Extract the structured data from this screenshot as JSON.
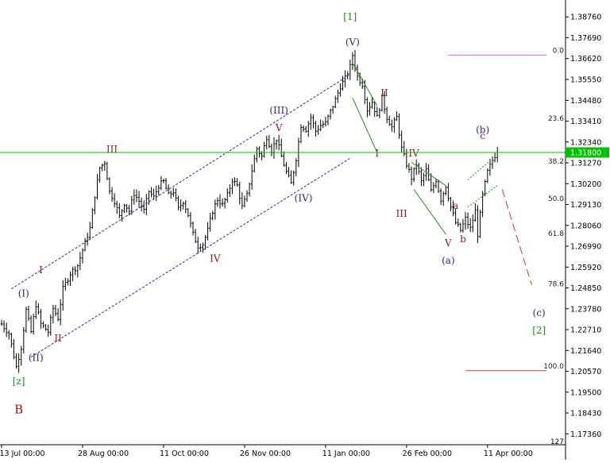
{
  "chart_data": {
    "type": "ohlc",
    "title": "",
    "xlabel": "",
    "ylabel": "",
    "ylim": [
      1.168,
      1.393
    ],
    "grid": false,
    "x_ticks": [
      {
        "label": "13 Jul 00:00",
        "bar": 0
      },
      {
        "label": "28 Aug 00:00",
        "bar": 33
      },
      {
        "label": "11 Oct 00:00",
        "bar": 66
      },
      {
        "label": "26 Nov 00:00",
        "bar": 99
      },
      {
        "label": "11 Jan 00:00",
        "bar": 132
      },
      {
        "label": "26 Feb 00:00",
        "bar": 165
      },
      {
        "label": "11 Apr 00:00",
        "bar": 198
      }
    ],
    "y_ticks": [
      "1.38760",
      "1.37690",
      "1.36620",
      "1.35550",
      "1.34480",
      "1.33410",
      "1.32340",
      "1.31270",
      "1.30200",
      "1.29130",
      "1.28060",
      "1.26990",
      "1.25920",
      "1.24850",
      "1.23780",
      "1.22710",
      "1.21640",
      "1.20570",
      "1.19500",
      "1.18430",
      "1.17360"
    ],
    "y_axis_bottom_label": "127",
    "last_bar": 202,
    "price_path": [
      [
        0,
        1.23
      ],
      [
        3,
        1.225
      ],
      [
        6,
        1.208
      ],
      [
        8,
        1.218
      ],
      [
        10,
        1.237
      ],
      [
        12,
        1.226
      ],
      [
        14,
        1.24
      ],
      [
        16,
        1.23
      ],
      [
        19,
        1.226
      ],
      [
        21,
        1.238
      ],
      [
        23,
        1.233
      ],
      [
        25,
        1.248
      ],
      [
        28,
        1.256
      ],
      [
        31,
        1.26
      ],
      [
        33,
        1.268
      ],
      [
        36,
        1.279
      ],
      [
        38,
        1.296
      ],
      [
        40,
        1.31
      ],
      [
        42,
        1.313
      ],
      [
        44,
        1.298
      ],
      [
        46,
        1.293
      ],
      [
        48,
        1.285
      ],
      [
        50,
        1.292
      ],
      [
        52,
        1.288
      ],
      [
        54,
        1.297
      ],
      [
        56,
        1.293
      ],
      [
        58,
        1.288
      ],
      [
        60,
        1.298
      ],
      [
        62,
        1.295
      ],
      [
        64,
        1.301
      ],
      [
        66,
        1.303
      ],
      [
        68,
        1.296
      ],
      [
        70,
        1.298
      ],
      [
        72,
        1.289
      ],
      [
        74,
        1.293
      ],
      [
        76,
        1.286
      ],
      [
        78,
        1.276
      ],
      [
        80,
        1.27
      ],
      [
        82,
        1.271
      ],
      [
        84,
        1.278
      ],
      [
        86,
        1.288
      ],
      [
        88,
        1.294
      ],
      [
        90,
        1.291
      ],
      [
        92,
        1.296
      ],
      [
        94,
        1.304
      ],
      [
        96,
        1.301
      ],
      [
        98,
        1.29
      ],
      [
        100,
        1.296
      ],
      [
        102,
        1.309
      ],
      [
        104,
        1.32
      ],
      [
        106,
        1.316
      ],
      [
        108,
        1.326
      ],
      [
        110,
        1.319
      ],
      [
        112,
        1.325
      ],
      [
        114,
        1.316
      ],
      [
        116,
        1.308
      ],
      [
        118,
        1.302
      ],
      [
        120,
        1.315
      ],
      [
        122,
        1.332
      ],
      [
        124,
        1.33
      ],
      [
        126,
        1.336
      ],
      [
        128,
        1.329
      ],
      [
        130,
        1.332
      ],
      [
        132,
        1.333
      ],
      [
        134,
        1.339
      ],
      [
        136,
        1.345
      ],
      [
        138,
        1.352
      ],
      [
        140,
        1.356
      ],
      [
        142,
        1.362
      ],
      [
        143,
        1.368
      ],
      [
        145,
        1.357
      ],
      [
        147,
        1.353
      ],
      [
        149,
        1.34
      ],
      [
        151,
        1.344
      ],
      [
        153,
        1.336
      ],
      [
        155,
        1.346
      ],
      [
        157,
        1.336
      ],
      [
        159,
        1.331
      ],
      [
        161,
        1.336
      ],
      [
        163,
        1.32
      ],
      [
        165,
        1.312
      ],
      [
        167,
        1.305
      ],
      [
        169,
        1.312
      ],
      [
        171,
        1.303
      ],
      [
        173,
        1.309
      ],
      [
        175,
        1.298
      ],
      [
        177,
        1.304
      ],
      [
        179,
        1.294
      ],
      [
        181,
        1.301
      ],
      [
        183,
        1.29
      ],
      [
        185,
        1.282
      ],
      [
        187,
        1.278
      ],
      [
        189,
        1.284
      ],
      [
        191,
        1.279
      ],
      [
        193,
        1.288
      ],
      [
        194,
        1.276
      ],
      [
        196,
        1.296
      ],
      [
        198,
        1.308
      ],
      [
        200,
        1.314
      ],
      [
        202,
        1.319
      ]
    ],
    "current_price": {
      "label": "1.31800",
      "value": 1.318,
      "color": "#00c000"
    },
    "wave_labels": [
      {
        "text": "[1]",
        "bar": 142,
        "price": 1.386,
        "color": "#1a8c1a"
      },
      {
        "text": "(V)",
        "bar": 143,
        "price": 1.373,
        "color": "#2a2a8a"
      },
      {
        "text": "(III)",
        "bar": 113,
        "price": 1.338,
        "color": "#2a2a8a"
      },
      {
        "text": "V",
        "bar": 113,
        "price": 1.329,
        "color": "#8b1a1a"
      },
      {
        "text": "III",
        "bar": 45,
        "price": 1.318,
        "color": "#8b1a1a"
      },
      {
        "text": "(IV)",
        "bar": 123,
        "price": 1.293,
        "color": "#2a2a8a"
      },
      {
        "text": "IV",
        "bar": 87,
        "price": 1.262,
        "color": "#8b1a1a"
      },
      {
        "text": "(I)",
        "bar": 9,
        "price": 1.244,
        "color": "#2a2a8a"
      },
      {
        "text": "I",
        "bar": 16,
        "price": 1.256,
        "color": "#8b1a1a"
      },
      {
        "text": "II",
        "bar": 23,
        "price": 1.221,
        "color": "#8b1a1a"
      },
      {
        "text": "(II)",
        "bar": 14,
        "price": 1.211,
        "color": "#2a2a8a"
      },
      {
        "text": "[z]",
        "bar": 7,
        "price": 1.199,
        "color": "#1a8c1a"
      },
      {
        "text": "B",
        "bar": 7,
        "price": 1.184,
        "color": "#8b1a1a",
        "size": 15
      },
      {
        "text": "II",
        "bar": 156,
        "price": 1.347,
        "color": "#8b1a1a"
      },
      {
        "text": "I",
        "bar": 153,
        "price": 1.316,
        "color": "#8b1a1a"
      },
      {
        "text": "III",
        "bar": 163,
        "price": 1.285,
        "color": "#8b1a1a"
      },
      {
        "text": "IV",
        "bar": 168,
        "price": 1.316,
        "color": "#8b1a1a"
      },
      {
        "text": "V",
        "bar": 182,
        "price": 1.27,
        "color": "#8b1a1a"
      },
      {
        "text": "(a)",
        "bar": 182,
        "price": 1.261,
        "color": "#2a2a8a"
      },
      {
        "text": "a",
        "bar": 185,
        "price": 1.289,
        "color": "#8b1a1a"
      },
      {
        "text": "b",
        "bar": 188,
        "price": 1.272,
        "color": "#8b1a1a"
      },
      {
        "text": "c",
        "bar": 196,
        "price": 1.325,
        "color": "#8b1a1a"
      },
      {
        "text": "(b)",
        "bar": 196,
        "price": 1.328,
        "color": "#2a2a8a"
      },
      {
        "text": "(c)",
        "bar": 219,
        "price": 1.234,
        "color": "#2a2a8a"
      },
      {
        "text": "[2]",
        "bar": 219,
        "price": 1.225,
        "color": "#1a8c1a"
      }
    ],
    "fibo_levels": [
      {
        "label": "0.0",
        "value": 1.368
      },
      {
        "label": "23.6",
        "value": 1.333
      },
      {
        "label": "38.2",
        "value": 1.311
      },
      {
        "label": "50.0",
        "value": 1.292
      },
      {
        "label": "61.8",
        "value": 1.274
      },
      {
        "label": "78.6",
        "value": 1.248
      },
      {
        "label": "100.0",
        "value": 1.206
      }
    ],
    "fibo_lines": [
      {
        "bar_start": 182,
        "bar_end": 222,
        "value": 1.368,
        "color": "#e060e0"
      },
      {
        "bar_start": 189,
        "bar_end": 222,
        "value": 1.206,
        "color": "#c04040"
      }
    ],
    "trend_lines": [
      {
        "from": [
          4,
          1.248
        ],
        "to": [
          142,
          1.358
        ],
        "color": "#2a2aa0",
        "dash": "3,2"
      },
      {
        "from": [
          12,
          1.213
        ],
        "to": [
          142,
          1.315
        ],
        "color": "#2a2aa0",
        "dash": "3,2"
      },
      {
        "from": [
          143,
          1.364
        ],
        "to": [
          153,
          1.342
        ],
        "color": "#2a8a2a",
        "dash": ""
      },
      {
        "from": [
          143,
          1.346
        ],
        "to": [
          153,
          1.318
        ],
        "color": "#2a8a2a",
        "dash": ""
      },
      {
        "from": [
          167,
          1.313
        ],
        "to": [
          181,
          1.301
        ],
        "color": "#2a8a2a",
        "dash": ""
      },
      {
        "from": [
          168,
          1.299
        ],
        "to": [
          181,
          1.276
        ],
        "color": "#2a8a2a",
        "dash": ""
      },
      {
        "from": [
          190,
          1.29
        ],
        "to": [
          202,
          1.301
        ],
        "color": "#2a8a2a",
        "dash": "2,2"
      },
      {
        "from": [
          190,
          1.304
        ],
        "to": [
          202,
          1.317
        ],
        "color": "#2a8a2a",
        "dash": "2,2"
      },
      {
        "from": [
          204,
          1.299
        ],
        "to": [
          216,
          1.25
        ],
        "color": "#e03030",
        "dash": "10,5"
      }
    ]
  }
}
